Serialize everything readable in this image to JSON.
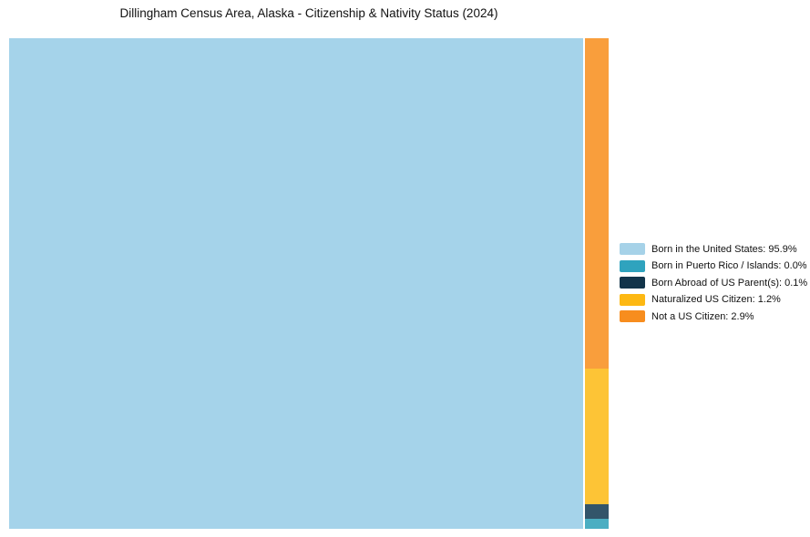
{
  "title": "Dillingham Census Area, Alaska - Citizenship & Nativity Status (2024)",
  "chart_data": {
    "type": "treemap",
    "title": "Dillingham Census Area, Alaska - Citizenship & Nativity Status (2024)",
    "categories": [
      "Born in the United States",
      "Born in Puerto Rico / Islands",
      "Born Abroad of US Parent(s)",
      "Naturalized US Citizen",
      "Not a US Citizen"
    ],
    "values": [
      95.9,
      0.0,
      0.1,
      1.2,
      2.9
    ],
    "unit": "%",
    "legend_position": "right",
    "block_colors": [
      "#a5d3ea",
      "#4baec2",
      "#33556a",
      "#fdc436",
      "#f99e3c"
    ],
    "legend_colors": [
      "#a6d2e8",
      "#2fa3be",
      "#12344a",
      "#fdb813",
      "#f78d1e"
    ],
    "background_color": "#ffffff",
    "text_color": "#111111"
  },
  "legend": {
    "items": [
      {
        "label": "Born in the United States: 95.9%",
        "color": "#a6d2e8"
      },
      {
        "label": "Born in Puerto Rico / Islands: 0.0%",
        "color": "#2fa3be"
      },
      {
        "label": "Born Abroad of US Parent(s): 0.1%",
        "color": "#12344a"
      },
      {
        "label": "Naturalized US Citizen: 1.2%",
        "color": "#fdb813"
      },
      {
        "label": "Not a US Citizen: 2.9%",
        "color": "#f78d1e"
      }
    ]
  }
}
